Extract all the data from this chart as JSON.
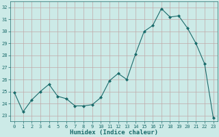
{
  "x": [
    0,
    1,
    2,
    3,
    4,
    5,
    6,
    7,
    8,
    9,
    10,
    11,
    12,
    13,
    14,
    15,
    16,
    17,
    18,
    19,
    20,
    21,
    22,
    23
  ],
  "y": [
    24.9,
    23.3,
    24.3,
    25.0,
    25.6,
    24.6,
    24.4,
    23.8,
    23.8,
    23.9,
    24.5,
    25.9,
    26.5,
    26.0,
    28.1,
    30.0,
    30.5,
    31.9,
    31.2,
    31.3,
    30.3,
    29.0,
    27.3,
    22.8
  ],
  "line_color": "#1a6b6b",
  "marker": "D",
  "marker_size": 2.0,
  "bg_color": "#cceae7",
  "grid_color": "#c0a8a8",
  "xlabel": "Humidex (Indice chaleur)",
  "ylim": [
    22.5,
    32.5
  ],
  "yticks": [
    23,
    24,
    25,
    26,
    27,
    28,
    29,
    30,
    31,
    32
  ],
  "xticks": [
    0,
    1,
    2,
    3,
    4,
    5,
    6,
    7,
    8,
    9,
    10,
    11,
    12,
    13,
    14,
    15,
    16,
    17,
    18,
    19,
    20,
    21,
    22,
    23
  ],
  "tick_color": "#1a6b6b",
  "label_color": "#1a6b6b",
  "xlabel_fontsize": 6.5,
  "tick_fontsize": 5.0
}
